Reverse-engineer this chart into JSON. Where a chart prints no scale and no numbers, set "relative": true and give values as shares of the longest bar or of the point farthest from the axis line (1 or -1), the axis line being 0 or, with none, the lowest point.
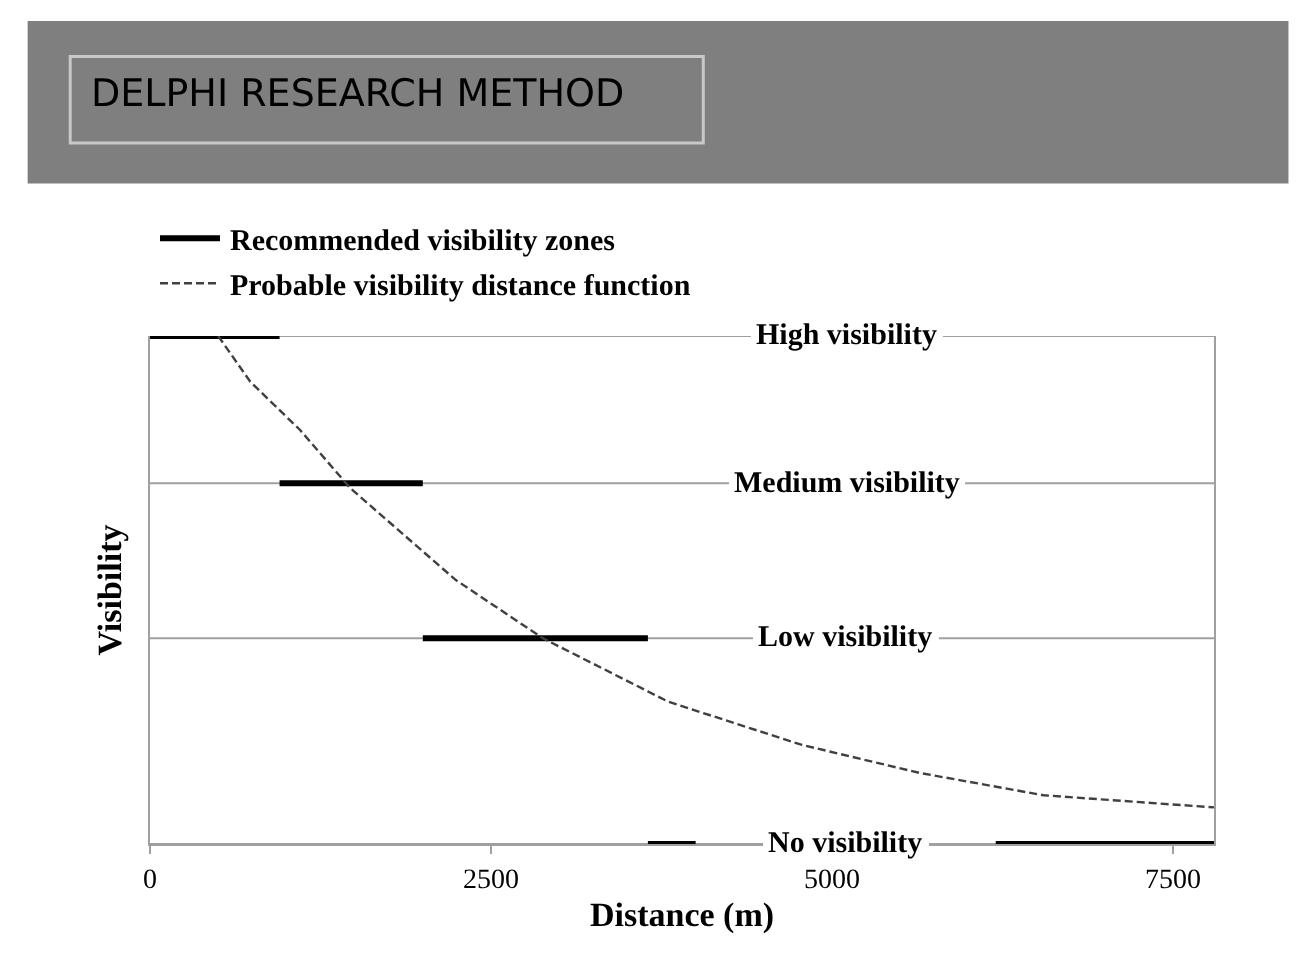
{
  "chart_data": {
    "type": "line",
    "title": "DELPHI RESEARCH METHOD",
    "xlabel": "Distance (m)",
    "ylabel": "Visibility",
    "relative": true,
    "xlim": [
      0,
      7800
    ],
    "xticks": [
      0,
      2500,
      5000,
      7500
    ],
    "series": [
      {
        "name": "Recommended visibility zones",
        "color": "#000000",
        "line_style": "solid",
        "x": [
          0,
          950,
          null,
          950,
          2000,
          null,
          2000,
          3650,
          null,
          3650,
          4000,
          null,
          6200,
          7800
        ],
        "values": [
          1,
          1,
          null,
          0.71,
          0.71,
          null,
          0.405,
          0.405,
          null,
          0,
          0,
          null,
          0,
          0
        ]
      },
      {
        "name": "Probable visibility distance function",
        "color": "#404040",
        "line_style": "dashed",
        "x": [
          500,
          735,
          1100,
          1470,
          2240,
          2880,
          3800,
          4780,
          5640,
          6550,
          7800
        ],
        "values": [
          1,
          0.91,
          0.815,
          0.7,
          0.52,
          0.405,
          0.28,
          0.195,
          0.14,
          0.096,
          0.072
        ]
      }
    ],
    "ref_lines": [
      {
        "axis": "y",
        "value": 1,
        "label": "High visibility",
        "color": "#a0a0a0"
      },
      {
        "axis": "y",
        "value": 0.71,
        "label": "Medium visibility",
        "color": "#a0a0a0"
      },
      {
        "axis": "y",
        "value": 0.405,
        "label": "Low visibility",
        "color": "#a0a0a0"
      },
      {
        "axis": "y",
        "value": 0,
        "label": "No visibility",
        "color": "#a0a0a0"
      }
    ],
    "legend": "top left",
    "grid": false
  }
}
